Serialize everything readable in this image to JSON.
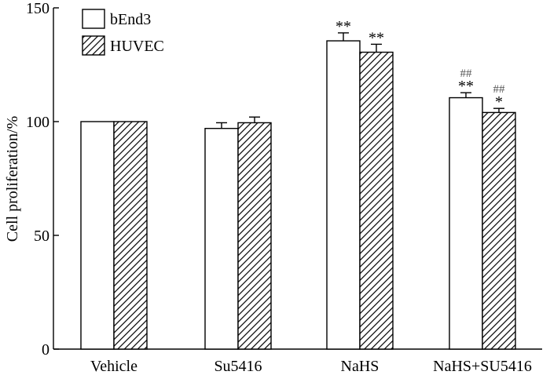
{
  "chart_data": {
    "type": "bar",
    "title": "",
    "xlabel": "",
    "ylabel": "Cell proliferation/%",
    "ylim": [
      0,
      150
    ],
    "yticks": [
      0,
      50,
      100,
      150
    ],
    "categories": [
      "Vehicle",
      "Su5416",
      "NaHS",
      "NaHS+SU5416"
    ],
    "series": [
      {
        "name": "bEnd3",
        "pattern": "open",
        "values": [
          100,
          97,
          135.5,
          110.5
        ],
        "errors": [
          0,
          2.5,
          3.5,
          2.2
        ],
        "significance": [
          "",
          "",
          "**",
          "**"
        ],
        "significance_vs_nahs": [
          "",
          "",
          "",
          "##"
        ]
      },
      {
        "name": "HUVEC",
        "pattern": "hatched",
        "values": [
          100,
          99.5,
          130.5,
          104
        ],
        "errors": [
          0,
          2.5,
          3.5,
          1.8
        ],
        "significance": [
          "",
          "",
          "**",
          "*"
        ],
        "significance_vs_nahs": [
          "",
          "",
          "",
          "##"
        ]
      }
    ],
    "legend_position": "top-left",
    "grid": false
  }
}
